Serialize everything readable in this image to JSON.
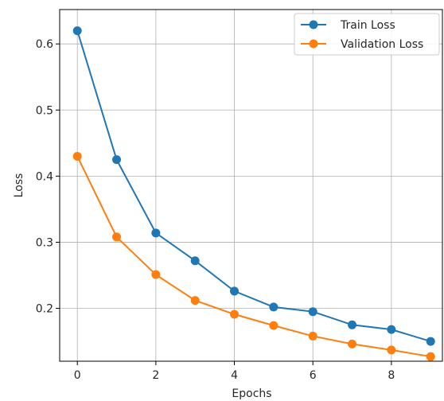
{
  "chart_data": {
    "type": "line",
    "title": "",
    "xlabel": "Epochs",
    "ylabel": "Loss",
    "x": [
      0,
      1,
      2,
      3,
      4,
      5,
      6,
      7,
      8,
      9
    ],
    "xlim": [
      -0.45,
      9.3
    ],
    "ylim": [
      0.12,
      0.652
    ],
    "x_ticks": [
      "0",
      "2",
      "4",
      "6",
      "8"
    ],
    "y_ticks": [
      "0.2",
      "0.3",
      "0.4",
      "0.5",
      "0.6"
    ],
    "grid": true,
    "legend_position": "top-right",
    "series": [
      {
        "name": "Train Loss",
        "color": "#1f77b4",
        "marker": "circle",
        "values": [
          0.62,
          0.425,
          0.314,
          0.272,
          0.226,
          0.202,
          0.195,
          0.175,
          0.168,
          0.15
        ]
      },
      {
        "name": "Validation Loss",
        "color": "#ff7f0e",
        "marker": "circle",
        "values": [
          0.43,
          0.308,
          0.251,
          0.212,
          0.191,
          0.174,
          0.158,
          0.146,
          0.137,
          0.127
        ]
      }
    ]
  }
}
